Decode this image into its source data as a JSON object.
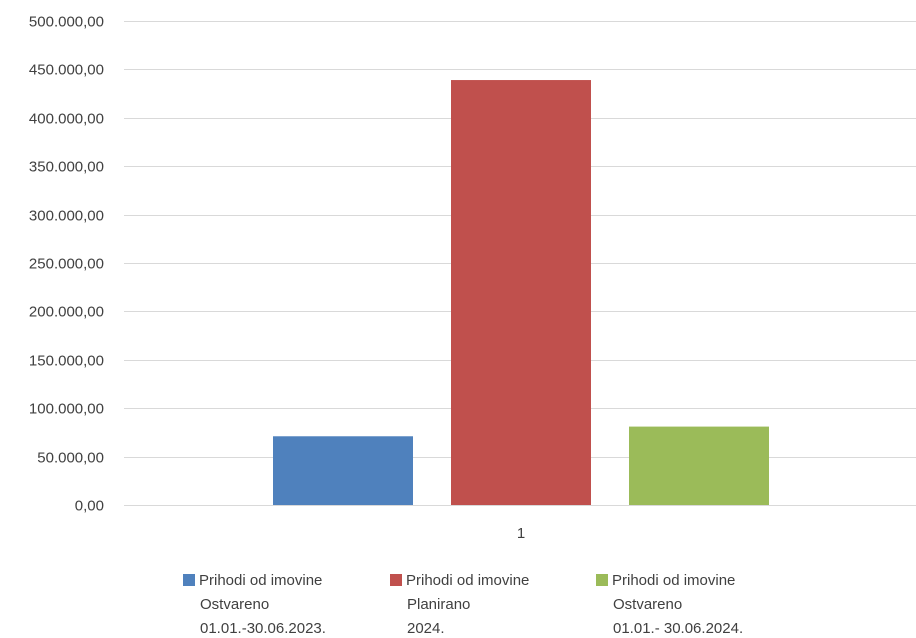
{
  "chart_data": {
    "type": "bar",
    "categories": [
      "1"
    ],
    "series": [
      {
        "name": "Prihodi od imovine Ostvareno 01.01.-30.06.2023.",
        "name_lines": [
          "Prihodi od imovine",
          "Ostvareno",
          "01.01.-30.06.2023."
        ],
        "values": [
          71000
        ],
        "color": "#4F81BD"
      },
      {
        "name": "Prihodi od imovine Planirano 2024.",
        "name_lines": [
          "Prihodi od imovine",
          "Planirano",
          "2024."
        ],
        "values": [
          439000
        ],
        "color": "#C0504D"
      },
      {
        "name": "Prihodi od imovine Ostvareno 01.01.- 30.06.2024.",
        "name_lines": [
          "Prihodi od imovine",
          "Ostvareno",
          "01.01.- 30.06.2024."
        ],
        "values": [
          81000
        ],
        "color": "#9BBB59"
      }
    ],
    "ylim": [
      0,
      500000
    ],
    "yticks": [
      0,
      50000,
      100000,
      150000,
      200000,
      250000,
      300000,
      350000,
      400000,
      450000,
      500000
    ],
    "ytick_labels": [
      "0,00",
      "50.000,00",
      "100.000,00",
      "150.000,00",
      "200.000,00",
      "250.000,00",
      "300.000,00",
      "350.000,00",
      "400.000,00",
      "450.000,00",
      "500.000,00"
    ],
    "grid": true,
    "legend_position": "bottom",
    "xlabel": "",
    "ylabel": "",
    "title": ""
  }
}
